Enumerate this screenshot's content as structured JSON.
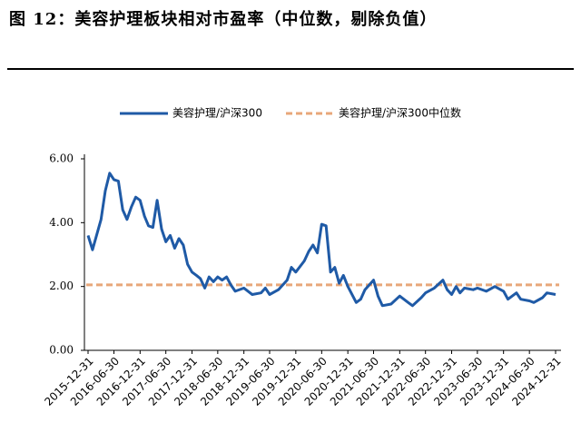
{
  "chart_data": {
    "type": "line",
    "title": "图 12：美容护理板块相对市盈率（中位数，剔除负值）",
    "series": [
      {
        "name": "美容护理/沪深300",
        "color": "#1f5aa6",
        "x": [
          "2015-12-31",
          "2016-01-31",
          "2016-03-31",
          "2016-04-30",
          "2016-05-31",
          "2016-06-30",
          "2016-07-31",
          "2016-08-31",
          "2016-09-30",
          "2016-10-31",
          "2016-11-30",
          "2016-12-31",
          "2017-01-31",
          "2017-02-28",
          "2017-03-31",
          "2017-04-30",
          "2017-05-31",
          "2017-06-30",
          "2017-07-31",
          "2017-08-31",
          "2017-09-30",
          "2017-10-31",
          "2017-11-30",
          "2017-12-31",
          "2018-01-31",
          "2018-02-28",
          "2018-03-31",
          "2018-04-30",
          "2018-05-31",
          "2018-06-30",
          "2018-07-31",
          "2018-08-31",
          "2018-09-30",
          "2018-10-31",
          "2018-12-31",
          "2019-02-28",
          "2019-04-30",
          "2019-05-31",
          "2019-06-30",
          "2019-08-31",
          "2019-10-31",
          "2019-11-30",
          "2019-12-31",
          "2020-02-29",
          "2020-03-31",
          "2020-04-30",
          "2020-05-31",
          "2020-06-30",
          "2020-07-31",
          "2020-08-31",
          "2020-09-30",
          "2020-10-31",
          "2020-11-30",
          "2020-12-31",
          "2021-02-28",
          "2021-03-31",
          "2021-04-30",
          "2021-06-30",
          "2021-07-31",
          "2021-08-31",
          "2021-10-31",
          "2021-12-31",
          "2022-02-28",
          "2022-03-31",
          "2022-05-31",
          "2022-06-30",
          "2022-08-31",
          "2022-10-31",
          "2022-11-30",
          "2022-12-31",
          "2023-01-31",
          "2023-02-28",
          "2023-03-31",
          "2023-05-31",
          "2023-06-30",
          "2023-08-31",
          "2023-10-31",
          "2023-12-31",
          "2024-01-31",
          "2024-03-31",
          "2024-04-30",
          "2024-06-30",
          "2024-07-31",
          "2024-09-30",
          "2024-10-31",
          "2024-12-31"
        ],
        "values": [
          3.6,
          3.15,
          4.1,
          5.0,
          5.55,
          5.35,
          5.3,
          4.4,
          4.1,
          4.5,
          4.8,
          4.7,
          4.2,
          3.9,
          3.85,
          4.7,
          3.8,
          3.4,
          3.6,
          3.2,
          3.5,
          3.3,
          2.7,
          2.45,
          2.35,
          2.25,
          1.95,
          2.3,
          2.15,
          2.3,
          2.2,
          2.3,
          2.05,
          1.85,
          1.95,
          1.75,
          1.8,
          1.95,
          1.75,
          1.9,
          2.2,
          2.6,
          2.45,
          2.8,
          3.1,
          3.3,
          3.05,
          3.95,
          3.9,
          2.45,
          2.6,
          2.1,
          2.35,
          2.0,
          1.5,
          1.6,
          1.9,
          2.2,
          1.7,
          1.4,
          1.45,
          1.7,
          1.5,
          1.4,
          1.65,
          1.8,
          1.95,
          2.2,
          1.9,
          1.75,
          2.0,
          1.8,
          1.95,
          1.9,
          1.95,
          1.85,
          2.0,
          1.85,
          1.6,
          1.8,
          1.6,
          1.55,
          1.5,
          1.65,
          1.8,
          1.75
        ]
      }
    ],
    "median": {
      "name": "美容护理/沪深300中位数",
      "color": "#e8a77a",
      "value": 2.05
    },
    "xlim": [
      "2015-12-31",
      "2024-12-31"
    ],
    "xticks": [
      "2015-12-31",
      "2016-06-30",
      "2016-12-31",
      "2017-06-30",
      "2017-12-31",
      "2018-06-30",
      "2018-12-31",
      "2019-06-30",
      "2019-12-31",
      "2020-06-30",
      "2020-12-31",
      "2021-06-30",
      "2021-12-31",
      "2022-06-30",
      "2022-12-31",
      "2023-06-30",
      "2023-12-31",
      "2024-06-30",
      "2024-12-31"
    ],
    "ylim": [
      0,
      6
    ],
    "yticks": [
      {
        "value": 0,
        "label": "0.00"
      },
      {
        "value": 2,
        "label": "2.00"
      },
      {
        "value": 4,
        "label": "4.00"
      },
      {
        "value": 6,
        "label": "6.00"
      }
    ]
  }
}
